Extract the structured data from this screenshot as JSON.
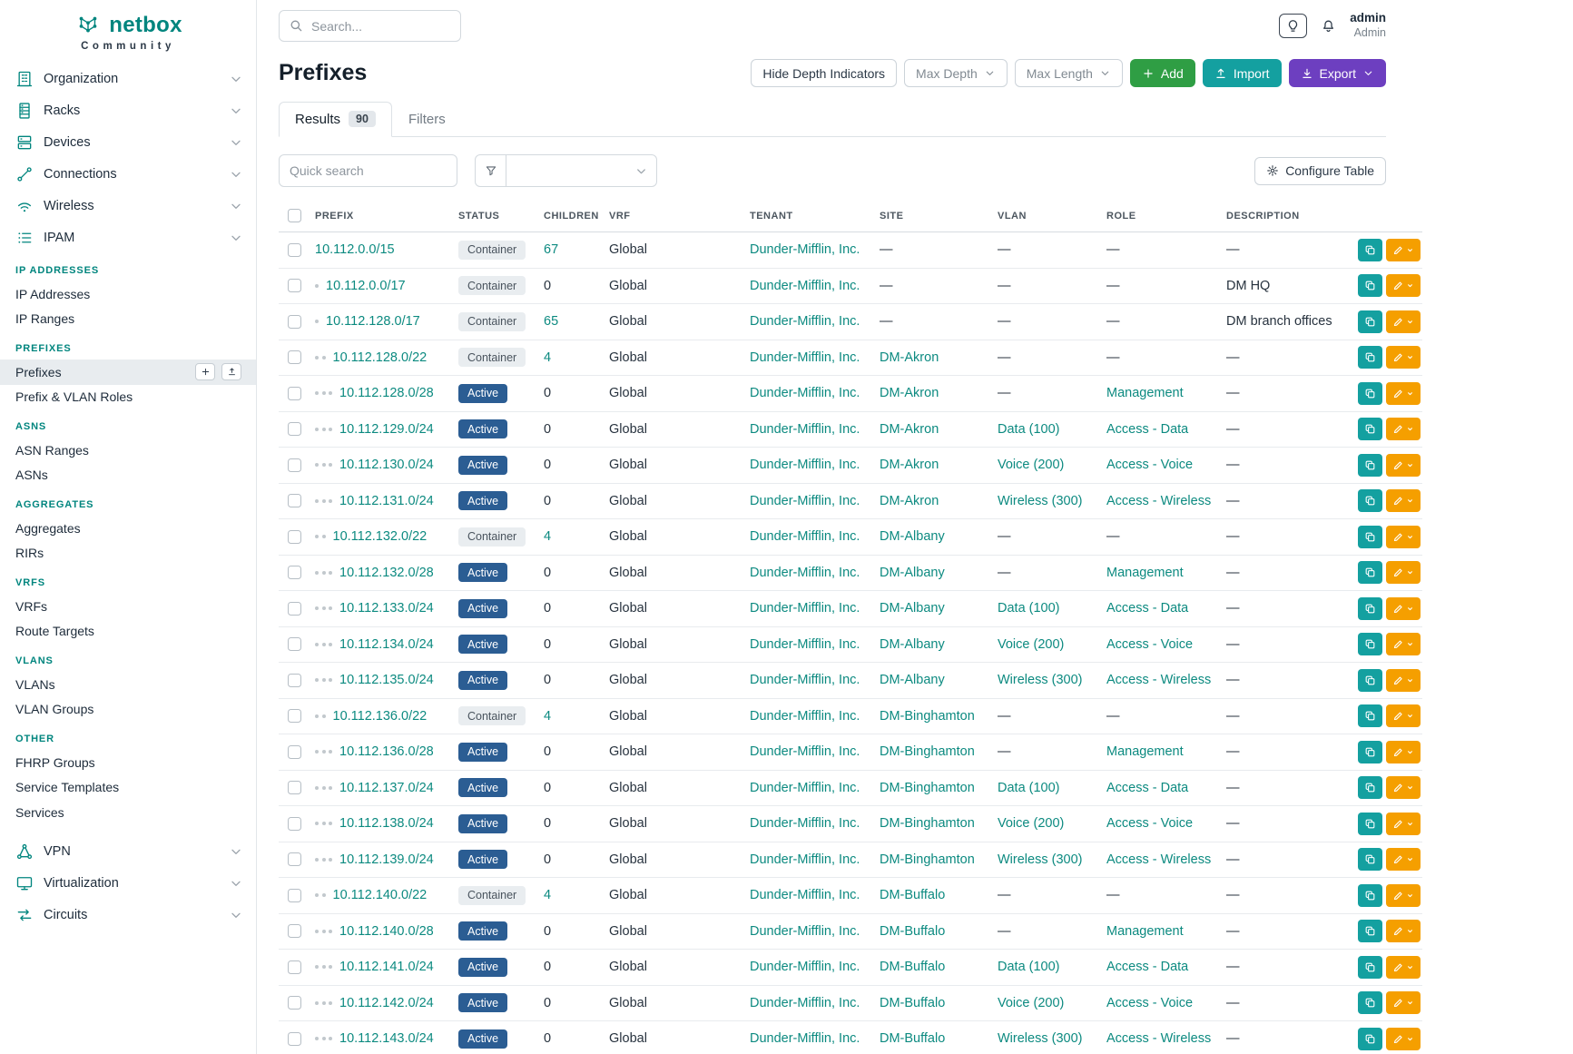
{
  "brand": {
    "name": "netbox",
    "subtitle": "Community"
  },
  "topbar": {
    "search_placeholder": "Search...",
    "username": "admin",
    "role": "Admin"
  },
  "colors": {
    "brand_teal": "#00857e",
    "link_teal": "#0c8a80",
    "status_active": "#2b5d93",
    "status_container": "#e9edf0",
    "add_green": "#2f9e44",
    "import_teal": "#14a0a0",
    "export_purple": "#6d3fc0",
    "edit_orange": "#f59f00",
    "clone_teal": "#14a0a0"
  },
  "sidebar": {
    "top_items": [
      {
        "label": "Organization"
      },
      {
        "label": "Racks"
      },
      {
        "label": "Devices"
      },
      {
        "label": "Connections"
      },
      {
        "label": "Wireless"
      },
      {
        "label": "IPAM"
      }
    ],
    "sections": [
      {
        "header": "IP ADDRESSES",
        "items": [
          {
            "label": "IP Addresses"
          },
          {
            "label": "IP Ranges"
          }
        ]
      },
      {
        "header": "PREFIXES",
        "items": [
          {
            "label": "Prefixes",
            "active": true
          },
          {
            "label": "Prefix & VLAN Roles"
          }
        ]
      },
      {
        "header": "ASNS",
        "items": [
          {
            "label": "ASN Ranges"
          },
          {
            "label": "ASNs"
          }
        ]
      },
      {
        "header": "AGGREGATES",
        "items": [
          {
            "label": "Aggregates"
          },
          {
            "label": "RIRs"
          }
        ]
      },
      {
        "header": "VRFS",
        "items": [
          {
            "label": "VRFs"
          },
          {
            "label": "Route Targets"
          }
        ]
      },
      {
        "header": "VLANS",
        "items": [
          {
            "label": "VLANs"
          },
          {
            "label": "VLAN Groups"
          }
        ]
      },
      {
        "header": "OTHER",
        "items": [
          {
            "label": "FHRP Groups"
          },
          {
            "label": "Service Templates"
          },
          {
            "label": "Services"
          }
        ]
      }
    ],
    "bottom_items": [
      {
        "label": "VPN"
      },
      {
        "label": "Virtualization"
      },
      {
        "label": "Circuits"
      }
    ]
  },
  "page": {
    "title": "Prefixes",
    "toolbar": {
      "hide_depth": "Hide Depth Indicators",
      "max_depth": "Max Depth",
      "max_length": "Max Length",
      "add": "Add",
      "import": "Import",
      "export": "Export"
    },
    "tabs": [
      {
        "label": "Results",
        "badge": "90",
        "active": true
      },
      {
        "label": "Filters",
        "active": false
      }
    ],
    "quick_search_placeholder": "Quick search",
    "configure_table": "Configure Table"
  },
  "table": {
    "columns": [
      "PREFIX",
      "STATUS",
      "CHILDREN",
      "VRF",
      "TENANT",
      "SITE",
      "VLAN",
      "ROLE",
      "DESCRIPTION"
    ],
    "rows": [
      {
        "prefix": "10.112.0.0/15",
        "depth": 0,
        "status": "Container",
        "children": "67",
        "vrf": "Global",
        "tenant": "Dunder-Mifflin, Inc.",
        "site": "—",
        "vlan": "—",
        "role": "—",
        "description": "—"
      },
      {
        "prefix": "10.112.0.0/17",
        "depth": 1,
        "status": "Container",
        "children": "0",
        "vrf": "Global",
        "tenant": "Dunder-Mifflin, Inc.",
        "site": "—",
        "vlan": "—",
        "role": "—",
        "description": "DM HQ"
      },
      {
        "prefix": "10.112.128.0/17",
        "depth": 1,
        "status": "Container",
        "children": "65",
        "vrf": "Global",
        "tenant": "Dunder-Mifflin, Inc.",
        "site": "—",
        "vlan": "—",
        "role": "—",
        "description": "DM branch offices"
      },
      {
        "prefix": "10.112.128.0/22",
        "depth": 2,
        "status": "Container",
        "children": "4",
        "vrf": "Global",
        "tenant": "Dunder-Mifflin, Inc.",
        "site": "DM-Akron",
        "vlan": "—",
        "role": "—",
        "description": "—"
      },
      {
        "prefix": "10.112.128.0/28",
        "depth": 3,
        "status": "Active",
        "children": "0",
        "vrf": "Global",
        "tenant": "Dunder-Mifflin, Inc.",
        "site": "DM-Akron",
        "vlan": "—",
        "role": "Management",
        "description": "—"
      },
      {
        "prefix": "10.112.129.0/24",
        "depth": 3,
        "status": "Active",
        "children": "0",
        "vrf": "Global",
        "tenant": "Dunder-Mifflin, Inc.",
        "site": "DM-Akron",
        "vlan": "Data (100)",
        "role": "Access - Data",
        "description": "—"
      },
      {
        "prefix": "10.112.130.0/24",
        "depth": 3,
        "status": "Active",
        "children": "0",
        "vrf": "Global",
        "tenant": "Dunder-Mifflin, Inc.",
        "site": "DM-Akron",
        "vlan": "Voice (200)",
        "role": "Access - Voice",
        "description": "—"
      },
      {
        "prefix": "10.112.131.0/24",
        "depth": 3,
        "status": "Active",
        "children": "0",
        "vrf": "Global",
        "tenant": "Dunder-Mifflin, Inc.",
        "site": "DM-Akron",
        "vlan": "Wireless (300)",
        "role": "Access - Wireless",
        "description": "—"
      },
      {
        "prefix": "10.112.132.0/22",
        "depth": 2,
        "status": "Container",
        "children": "4",
        "vrf": "Global",
        "tenant": "Dunder-Mifflin, Inc.",
        "site": "DM-Albany",
        "vlan": "—",
        "role": "—",
        "description": "—"
      },
      {
        "prefix": "10.112.132.0/28",
        "depth": 3,
        "status": "Active",
        "children": "0",
        "vrf": "Global",
        "tenant": "Dunder-Mifflin, Inc.",
        "site": "DM-Albany",
        "vlan": "—",
        "role": "Management",
        "description": "—"
      },
      {
        "prefix": "10.112.133.0/24",
        "depth": 3,
        "status": "Active",
        "children": "0",
        "vrf": "Global",
        "tenant": "Dunder-Mifflin, Inc.",
        "site": "DM-Albany",
        "vlan": "Data (100)",
        "role": "Access - Data",
        "description": "—"
      },
      {
        "prefix": "10.112.134.0/24",
        "depth": 3,
        "status": "Active",
        "children": "0",
        "vrf": "Global",
        "tenant": "Dunder-Mifflin, Inc.",
        "site": "DM-Albany",
        "vlan": "Voice (200)",
        "role": "Access - Voice",
        "description": "—"
      },
      {
        "prefix": "10.112.135.0/24",
        "depth": 3,
        "status": "Active",
        "children": "0",
        "vrf": "Global",
        "tenant": "Dunder-Mifflin, Inc.",
        "site": "DM-Albany",
        "vlan": "Wireless (300)",
        "role": "Access - Wireless",
        "description": "—"
      },
      {
        "prefix": "10.112.136.0/22",
        "depth": 2,
        "status": "Container",
        "children": "4",
        "vrf": "Global",
        "tenant": "Dunder-Mifflin, Inc.",
        "site": "DM-Binghamton",
        "vlan": "—",
        "role": "—",
        "description": "—"
      },
      {
        "prefix": "10.112.136.0/28",
        "depth": 3,
        "status": "Active",
        "children": "0",
        "vrf": "Global",
        "tenant": "Dunder-Mifflin, Inc.",
        "site": "DM-Binghamton",
        "vlan": "—",
        "role": "Management",
        "description": "—"
      },
      {
        "prefix": "10.112.137.0/24",
        "depth": 3,
        "status": "Active",
        "children": "0",
        "vrf": "Global",
        "tenant": "Dunder-Mifflin, Inc.",
        "site": "DM-Binghamton",
        "vlan": "Data (100)",
        "role": "Access - Data",
        "description": "—"
      },
      {
        "prefix": "10.112.138.0/24",
        "depth": 3,
        "status": "Active",
        "children": "0",
        "vrf": "Global",
        "tenant": "Dunder-Mifflin, Inc.",
        "site": "DM-Binghamton",
        "vlan": "Voice (200)",
        "role": "Access - Voice",
        "description": "—"
      },
      {
        "prefix": "10.112.139.0/24",
        "depth": 3,
        "status": "Active",
        "children": "0",
        "vrf": "Global",
        "tenant": "Dunder-Mifflin, Inc.",
        "site": "DM-Binghamton",
        "vlan": "Wireless (300)",
        "role": "Access - Wireless",
        "description": "—"
      },
      {
        "prefix": "10.112.140.0/22",
        "depth": 2,
        "status": "Container",
        "children": "4",
        "vrf": "Global",
        "tenant": "Dunder-Mifflin, Inc.",
        "site": "DM-Buffalo",
        "vlan": "—",
        "role": "—",
        "description": "—"
      },
      {
        "prefix": "10.112.140.0/28",
        "depth": 3,
        "status": "Active",
        "children": "0",
        "vrf": "Global",
        "tenant": "Dunder-Mifflin, Inc.",
        "site": "DM-Buffalo",
        "vlan": "—",
        "role": "Management",
        "description": "—"
      },
      {
        "prefix": "10.112.141.0/24",
        "depth": 3,
        "status": "Active",
        "children": "0",
        "vrf": "Global",
        "tenant": "Dunder-Mifflin, Inc.",
        "site": "DM-Buffalo",
        "vlan": "Data (100)",
        "role": "Access - Data",
        "description": "—"
      },
      {
        "prefix": "10.112.142.0/24",
        "depth": 3,
        "status": "Active",
        "children": "0",
        "vrf": "Global",
        "tenant": "Dunder-Mifflin, Inc.",
        "site": "DM-Buffalo",
        "vlan": "Voice (200)",
        "role": "Access - Voice",
        "description": "—"
      },
      {
        "prefix": "10.112.143.0/24",
        "depth": 3,
        "status": "Active",
        "children": "0",
        "vrf": "Global",
        "tenant": "Dunder-Mifflin, Inc.",
        "site": "DM-Buffalo",
        "vlan": "Wireless (300)",
        "role": "Access - Wireless",
        "description": "—"
      }
    ]
  }
}
